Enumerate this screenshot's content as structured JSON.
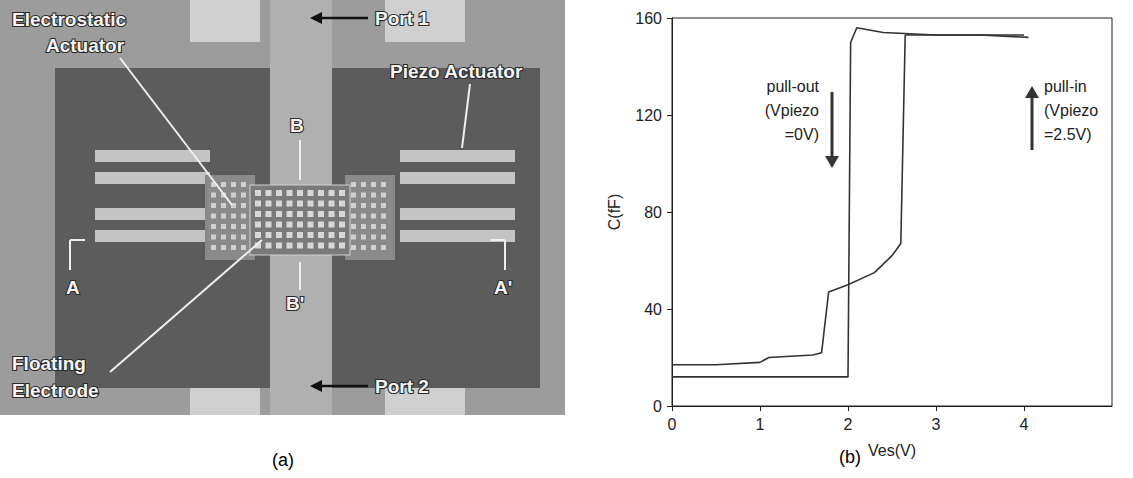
{
  "photo": {
    "labels": [
      {
        "lines": [
          "Electrostatic",
          "Actuator"
        ]
      },
      {
        "lines": [
          "Port 1"
        ]
      },
      {
        "lines": [
          "Piezo Actuator"
        ]
      },
      {
        "lines": [
          "B"
        ]
      },
      {
        "lines": [
          "B'"
        ]
      },
      {
        "lines": [
          "A"
        ]
      },
      {
        "lines": [
          "A'"
        ]
      },
      {
        "lines": [
          "Floating",
          "Electrode"
        ]
      },
      {
        "lines": [
          "Port 2"
        ]
      }
    ],
    "caption": "(a)"
  },
  "chart_caption": "(b)",
  "chart_data": {
    "type": "line",
    "x_label": "Ves(V)",
    "y_label": "C(fF)",
    "xlim": [
      0,
      5
    ],
    "xticks": [
      0,
      1,
      2,
      3,
      4
    ],
    "ylim": [
      0,
      160
    ],
    "yticks": [
      0,
      40,
      80,
      120,
      160
    ],
    "grid": false,
    "series": [
      {
        "color": "#333333",
        "x": [
          0,
          1,
          1.5,
          1.95,
          2.0,
          2.03,
          2.1,
          2.4,
          3,
          3.5,
          4
        ],
        "values": [
          12,
          12,
          12,
          12,
          12,
          150,
          156,
          154,
          153,
          153,
          153
        ]
      },
      {
        "color": "#333333",
        "x": [
          0,
          0.5,
          1,
          1.1,
          1.6,
          1.7,
          1.78,
          2.0,
          2.3,
          2.5,
          2.6,
          2.65,
          2.7,
          3,
          3.5,
          4.05
        ],
        "values": [
          17,
          17,
          18,
          20,
          21,
          22,
          47,
          50,
          55,
          62,
          67,
          153,
          153,
          153,
          153,
          152
        ]
      }
    ],
    "annotations": [
      {
        "lines": [
          "pull-out",
          "(Vpiezo",
          "=0V)"
        ],
        "arrow": "down"
      },
      {
        "lines": [
          "pull-in",
          "(Vpiezo",
          "=2.5V)"
        ],
        "arrow": "up"
      }
    ]
  }
}
